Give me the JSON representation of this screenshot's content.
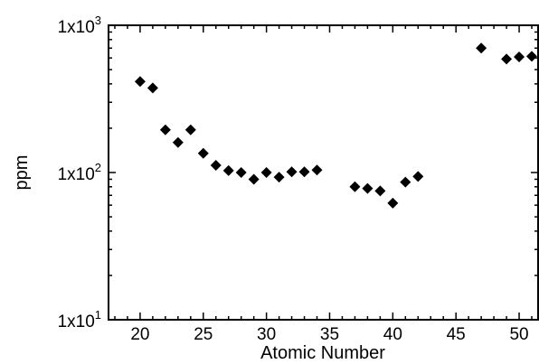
{
  "chart_data": {
    "type": "scatter",
    "xlabel": "Atomic Number",
    "ylabel": "ppm",
    "xlim": [
      17.5,
      51.5
    ],
    "ylim": [
      10,
      1000
    ],
    "yscale": "log",
    "grid": false,
    "marker": "diamond",
    "marker_color": "#000000",
    "x_ticks": [
      20,
      25,
      30,
      35,
      40,
      45,
      50
    ],
    "x_tick_labels": [
      "20",
      "25",
      "30",
      "35",
      "40",
      "45",
      "50"
    ],
    "y_ticks": [
      {
        "value": 10,
        "base": "1x10",
        "exp": "1"
      },
      {
        "value": 100,
        "base": "1x10",
        "exp": "2"
      },
      {
        "value": 1000,
        "base": "1x10",
        "exp": "3"
      }
    ],
    "series": [
      {
        "points": [
          {
            "x": 20,
            "y": 415
          },
          {
            "x": 21,
            "y": 375
          },
          {
            "x": 22,
            "y": 195
          },
          {
            "x": 23,
            "y": 160
          },
          {
            "x": 24,
            "y": 195
          },
          {
            "x": 25,
            "y": 135
          },
          {
            "x": 26,
            "y": 112
          },
          {
            "x": 27,
            "y": 103
          },
          {
            "x": 28,
            "y": 100
          },
          {
            "x": 29,
            "y": 90
          },
          {
            "x": 30,
            "y": 100
          },
          {
            "x": 31,
            "y": 93
          },
          {
            "x": 32,
            "y": 101
          },
          {
            "x": 33,
            "y": 101
          },
          {
            "x": 34,
            "y": 104
          },
          {
            "x": 37,
            "y": 80
          },
          {
            "x": 38,
            "y": 78
          },
          {
            "x": 39,
            "y": 75
          },
          {
            "x": 40,
            "y": 62
          },
          {
            "x": 41,
            "y": 86
          },
          {
            "x": 42,
            "y": 94
          },
          {
            "x": 47,
            "y": 700
          },
          {
            "x": 49,
            "y": 590
          },
          {
            "x": 50,
            "y": 610
          },
          {
            "x": 51,
            "y": 615
          }
        ]
      }
    ]
  }
}
